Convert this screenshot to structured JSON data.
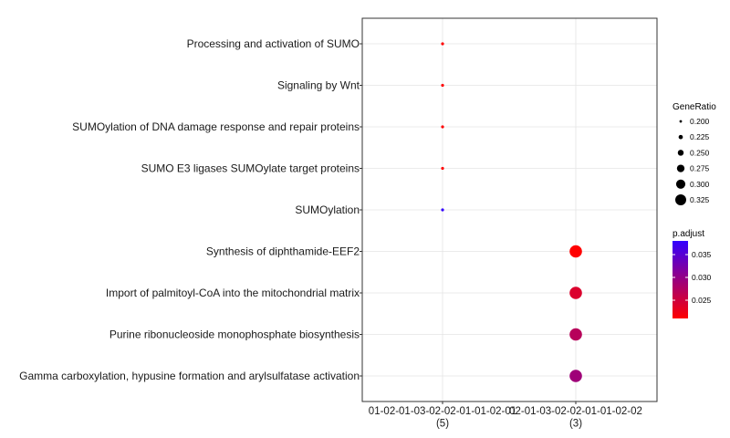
{
  "chart_data": {
    "type": "scatter",
    "title": "",
    "xlabel": "",
    "ylabel": "",
    "categories": [
      "01-02-01-03-02-02-01-01-02-01\n(5)",
      "02-01-03-02-02-01-01-02-02\n(3)"
    ],
    "terms": [
      "Processing and activation of SUMO",
      "Signaling by Wnt",
      "SUMOylation of DNA damage response and repair proteins",
      "SUMO E3 ligases SUMOylate target proteins",
      "SUMOylation",
      "Synthesis of diphthamide-EEF2",
      "Import of palmitoyl-CoA into the mitochondrial matrix",
      "Purine ribonucleoside monophosphate biosynthesis",
      "Gamma carboxylation, hypusine formation and arylsulfatase activation"
    ],
    "points": [
      {
        "term": "Processing and activation of SUMO",
        "category": 0,
        "gene_ratio": 0.2,
        "p_adjust": 0.021
      },
      {
        "term": "Signaling by Wnt",
        "category": 0,
        "gene_ratio": 0.2,
        "p_adjust": 0.021
      },
      {
        "term": "SUMOylation of DNA damage response and repair proteins",
        "category": 0,
        "gene_ratio": 0.2,
        "p_adjust": 0.021
      },
      {
        "term": "SUMO E3 ligases SUMOylate target proteins",
        "category": 0,
        "gene_ratio": 0.2,
        "p_adjust": 0.021
      },
      {
        "term": "SUMOylation",
        "category": 0,
        "gene_ratio": 0.2,
        "p_adjust": 0.038
      },
      {
        "term": "Synthesis of diphthamide-EEF2",
        "category": 1,
        "gene_ratio": 0.333,
        "p_adjust": 0.021
      },
      {
        "term": "Import of palmitoyl-CoA into the mitochondrial matrix",
        "category": 1,
        "gene_ratio": 0.333,
        "p_adjust": 0.024
      },
      {
        "term": "Purine ribonucleoside monophosphate biosynthesis",
        "category": 1,
        "gene_ratio": 0.333,
        "p_adjust": 0.027
      },
      {
        "term": "Gamma carboxylation, hypusine formation and arylsulfatase activation",
        "category": 1,
        "gene_ratio": 0.333,
        "p_adjust": 0.029
      }
    ],
    "size_legend": {
      "title": "GeneRatio",
      "values": [
        0.2,
        0.225,
        0.25,
        0.275,
        0.3,
        0.325
      ],
      "labels": [
        "0.200",
        "0.225",
        "0.250",
        "0.275",
        "0.300",
        "0.325"
      ]
    },
    "color_legend": {
      "title": "p.adjust",
      "range": [
        0.021,
        0.038
      ],
      "ticks": [
        0.025,
        0.03,
        0.035
      ],
      "tick_labels": [
        "0.025",
        "0.030",
        "0.035"
      ],
      "low_color": "#ff0000",
      "high_color": "#3300ff"
    },
    "grid": true,
    "legend_position": "right"
  }
}
